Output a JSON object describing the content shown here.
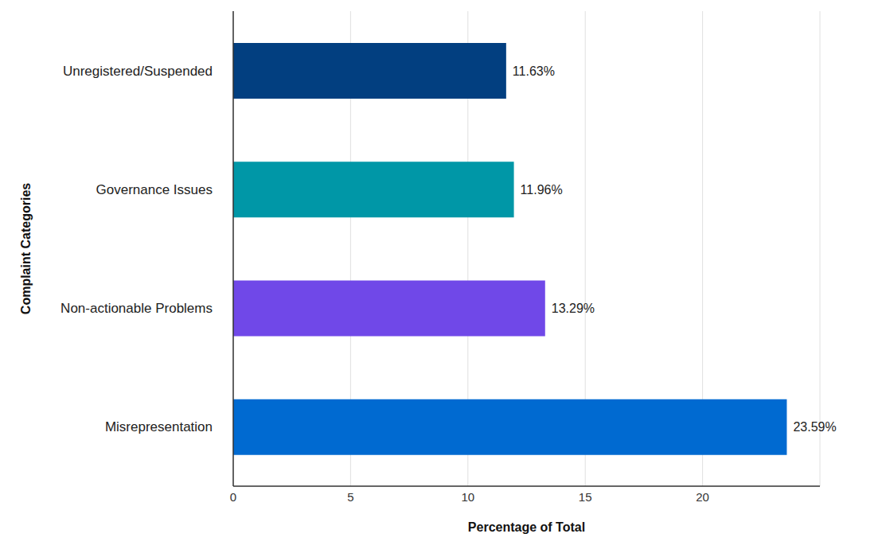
{
  "chart_data": {
    "type": "bar",
    "orientation": "horizontal",
    "x_label": "Percentage of Total",
    "y_label": "Complaint Categories",
    "categories": [
      "Unregistered/Suspended",
      "Governance Issues",
      "Non-actionable Problems",
      "Misrepresentation"
    ],
    "values": [
      11.63,
      11.96,
      13.29,
      23.59
    ],
    "value_labels": [
      "11.63%",
      "11.96%",
      "13.29%",
      "23.59%"
    ],
    "colors": [
      "#023f80",
      "#0097a7",
      "#7048e8",
      "#006ad1"
    ],
    "xlim": [
      0,
      25
    ],
    "xticks": [
      0,
      5,
      10,
      15,
      20
    ],
    "grid": true,
    "data_labels": true
  }
}
